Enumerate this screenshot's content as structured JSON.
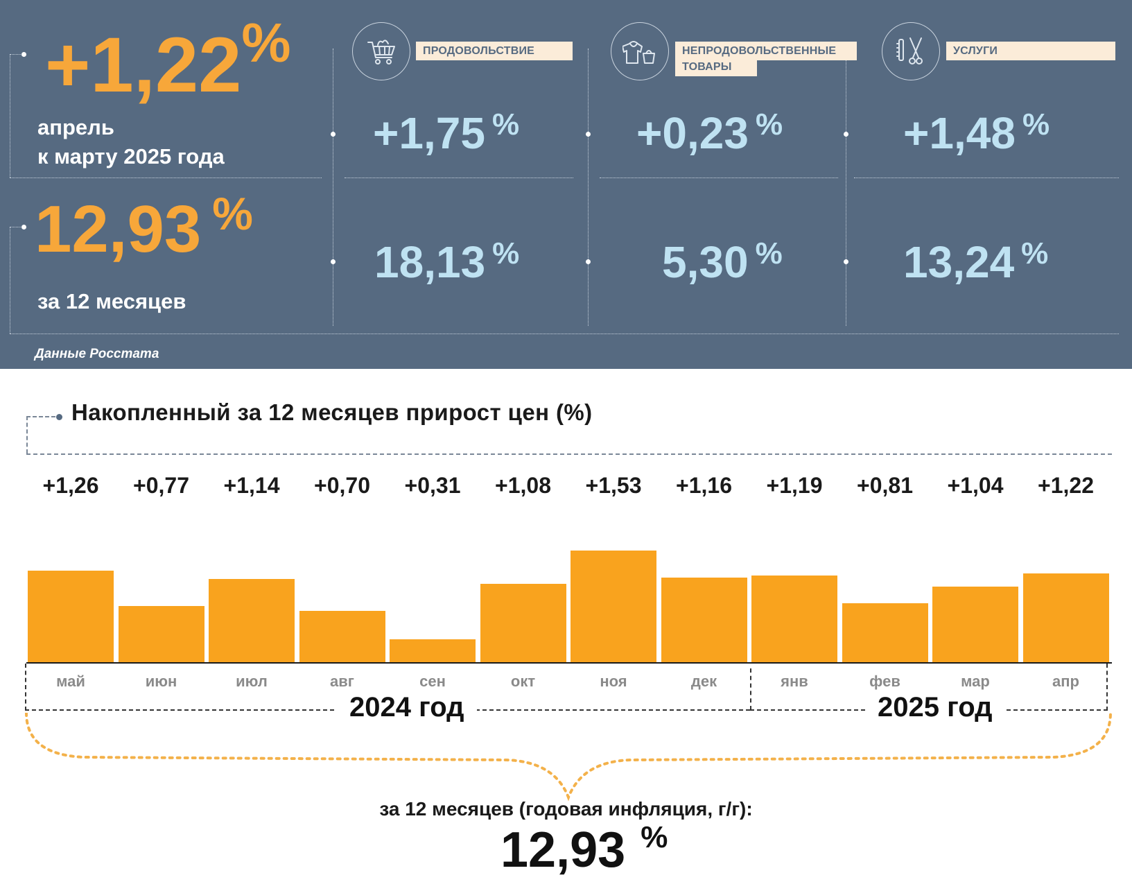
{
  "top_panel": {
    "monthly": {
      "value": "+1,22",
      "unit": "%",
      "label_line1": "апрель",
      "label_line2": "к марту 2025 года"
    },
    "annual": {
      "value": "12,93",
      "unit": "%",
      "label": "за 12 месяцев"
    },
    "categories": [
      {
        "name": "ПРОДОВОЛЬСТВИЕ",
        "name_line2": "",
        "icon": "shopping-cart-icon",
        "monthly": "+1,75",
        "annual": "18,13",
        "unit": "%"
      },
      {
        "name": "НЕПРОДОВОЛЬСТВЕННЫЕ",
        "name_line2": "ТОВАРЫ",
        "icon": "hoodie-bag-icon",
        "monthly": "+0,23",
        "annual": "5,30",
        "unit": "%"
      },
      {
        "name": "УСЛУГИ",
        "name_line2": "",
        "icon": "scissors-comb-icon",
        "monthly": "+1,48",
        "annual": "13,24",
        "unit": "%"
      }
    ],
    "source": "Данные Росстата",
    "colors": {
      "panel_bg": "#566a81",
      "accent_orange": "#f7a73a",
      "category_value": "#bfe2f2",
      "tag_bg": "#fbecd9"
    }
  },
  "chart_data": {
    "type": "bar",
    "title": "Накопленный за 12 месяцев прирост цен (%)",
    "categories": [
      "май",
      "июн",
      "июл",
      "авг",
      "сен",
      "окт",
      "ноя",
      "дек",
      "янв",
      "фев",
      "мар",
      "апр"
    ],
    "values": [
      1.26,
      0.77,
      1.14,
      0.7,
      0.31,
      1.08,
      1.53,
      1.16,
      1.19,
      0.81,
      1.04,
      1.22
    ],
    "value_labels": [
      "+1,26",
      "+0,77",
      "+1,14",
      "+0,70",
      "+0,31",
      "+1,08",
      "+1,53",
      "+1,16",
      "+1,19",
      "+0,81",
      "+1,04",
      "+1,22"
    ],
    "year_groups": [
      {
        "label": "2024 год",
        "months": 8
      },
      {
        "label": "2025 год",
        "months": 4
      }
    ],
    "bar_color": "#f9a31e",
    "summary_label": "за 12 месяцев (годовая инфляция, г/г):",
    "summary_value": "12,93",
    "summary_unit": "%"
  }
}
